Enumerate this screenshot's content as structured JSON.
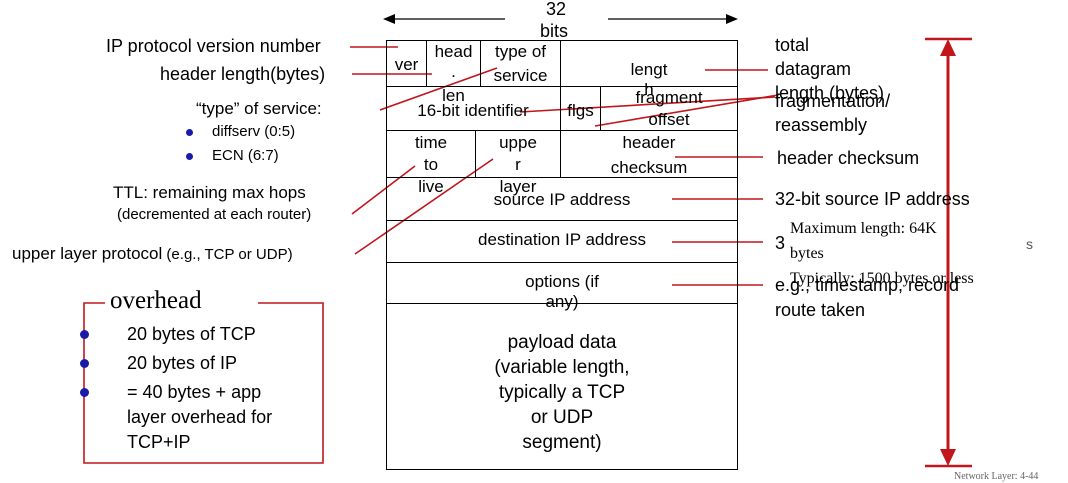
{
  "bits": {
    "number": "32",
    "unit": "bits"
  },
  "header_fields": {
    "ver": "ver",
    "head_len": [
      "head",
      ".",
      "len"
    ],
    "type_of_service": [
      "type of",
      "service"
    ],
    "length": [
      "lengt",
      "h"
    ],
    "identifier": "16-bit identifier",
    "flgs": "flgs",
    "fragment_offset": [
      "fragment",
      "offset"
    ],
    "ttl": [
      "time",
      "to",
      "live"
    ],
    "upper_layer": [
      "uppe",
      "r",
      "layer"
    ],
    "header_checksum": [
      "header",
      "checksum"
    ],
    "source_ip": "source IP address",
    "dest_ip": "destination IP address",
    "options": [
      "options (if",
      "any)"
    ],
    "payload": [
      "payload data",
      "(variable length,",
      "typically a TCP",
      "or UDP",
      "segment)"
    ]
  },
  "left_labels": {
    "version": "IP protocol version number",
    "header_length": "header length(bytes)",
    "type_of_service": "“type” of service:",
    "tos_items": [
      "diffserv (0:5)",
      "ECN (6:7)"
    ],
    "ttl_line1": "TTL: remaining  max hops",
    "ttl_line2": "(decremented at each router)",
    "upper_prefix": "upper layer protocol",
    "upper_suffix": " (e.g., TCP or UDP)"
  },
  "right_labels": {
    "total_length": [
      "total",
      "datagram",
      "length (bytes)"
    ],
    "fragmentation": [
      "fragmentation/",
      "reassembly"
    ],
    "header_checksum": "header checksum",
    "source_ip": "32-bit source IP address",
    "dest_ip_partial": "3",
    "dest_ip_tail": "s",
    "max_length_note": [
      "Maximum length: 64K",
      "bytes",
      "Typically: 1500 bytes or less"
    ],
    "options_note": [
      "e.g., timestamp, record",
      "route taken"
    ]
  },
  "overhead": {
    "title": "overhead",
    "items": [
      "20 bytes of TCP",
      "20 bytes of IP",
      "= 40 bytes + app",
      "layer overhead for",
      "TCP+IP"
    ]
  },
  "footer": "Network Layer: 4-44",
  "colors": {
    "accent": "#c0161c",
    "bullet": "#1a1aa8",
    "text": "#000000"
  }
}
